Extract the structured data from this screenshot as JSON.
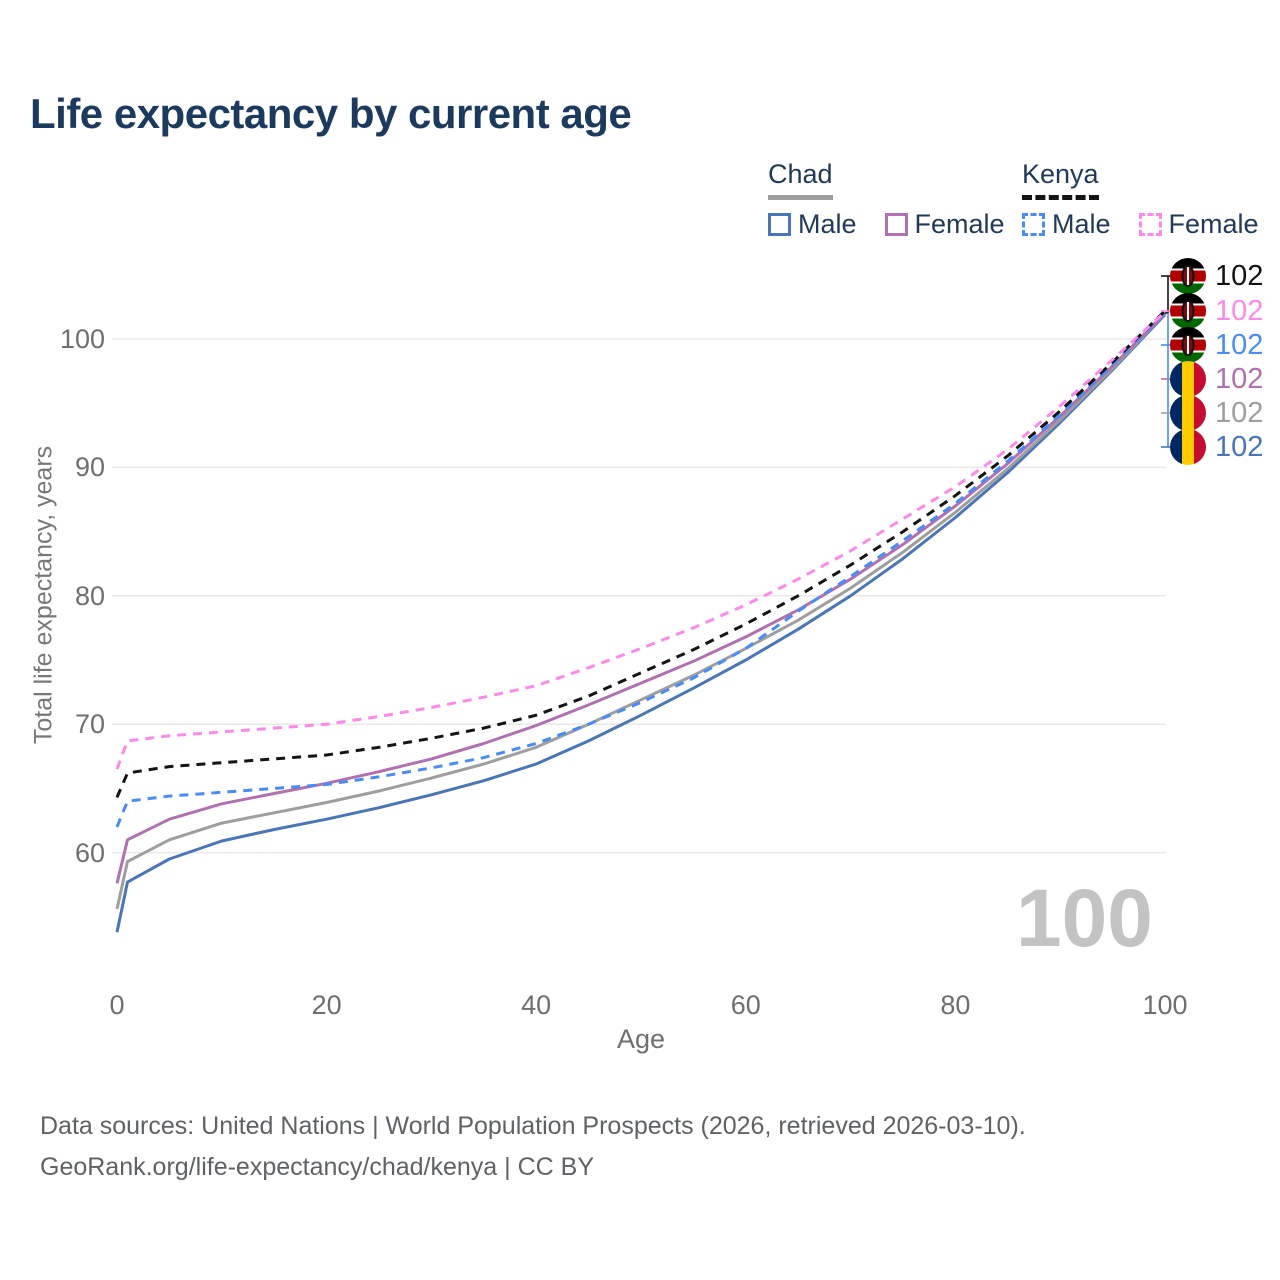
{
  "title": "Life expectancy by current age",
  "legend": {
    "groups": [
      {
        "label": "Chad",
        "line_style": "solid",
        "underline_color": "#9e9e9e",
        "items": [
          {
            "label": "Male",
            "color": "#4a76b8",
            "style": "solid"
          },
          {
            "label": "Female",
            "color": "#b170b0",
            "style": "solid"
          }
        ]
      },
      {
        "label": "Kenya",
        "line_style": "dashed",
        "underline_color": "#141414",
        "items": [
          {
            "label": "Male",
            "color": "#4a8cf7",
            "style": "dashed"
          },
          {
            "label": "Female",
            "color": "#fb8ae8",
            "style": "dashed"
          }
        ]
      }
    ]
  },
  "chart_data": {
    "type": "line",
    "title": "Life expectancy by current age",
    "xlabel": "Age",
    "ylabel": "Total life expectancy, years",
    "xlim": [
      0,
      100
    ],
    "ylim": [
      52,
      104
    ],
    "xticks": [
      0,
      20,
      40,
      60,
      80,
      100
    ],
    "yticks": [
      60,
      70,
      80,
      90,
      100
    ],
    "grid": "horizontal-only",
    "legend_position": "top-right",
    "x": [
      0,
      1,
      5,
      10,
      15,
      20,
      25,
      30,
      35,
      40,
      45,
      50,
      55,
      60,
      65,
      70,
      75,
      80,
      85,
      90,
      95,
      100
    ],
    "series": [
      {
        "name": "Chad Male",
        "country": "Chad",
        "group": "Male",
        "color": "#4a76b8",
        "dash": "none",
        "values": [
          53.8,
          57.7,
          59.5,
          60.9,
          61.8,
          62.6,
          63.5,
          64.5,
          65.6,
          66.9,
          68.7,
          70.7,
          72.8,
          75.0,
          77.4,
          80.0,
          82.9,
          86.1,
          89.6,
          93.5,
          97.6,
          101.9
        ]
      },
      {
        "name": "Chad Total",
        "country": "Chad",
        "group": "Total",
        "color": "#9e9e9e",
        "dash": "none",
        "values": [
          55.6,
          59.3,
          61.0,
          62.3,
          63.1,
          63.9,
          64.8,
          65.8,
          66.9,
          68.2,
          70.0,
          71.9,
          73.8,
          75.9,
          78.1,
          80.6,
          83.4,
          86.5,
          89.9,
          93.7,
          97.7,
          102.0
        ]
      },
      {
        "name": "Chad Female",
        "country": "Chad",
        "group": "Female",
        "color": "#b170b0",
        "dash": "none",
        "values": [
          57.6,
          61.0,
          62.6,
          63.8,
          64.6,
          65.4,
          66.3,
          67.3,
          68.5,
          69.9,
          71.5,
          73.2,
          74.9,
          76.8,
          78.9,
          81.3,
          84.0,
          87.0,
          90.3,
          94.0,
          97.9,
          102.0
        ]
      },
      {
        "name": "Kenya Male",
        "country": "Kenya",
        "group": "Male",
        "color": "#4a8cf7",
        "dash": "9 7",
        "values": [
          62.0,
          64.0,
          64.4,
          64.7,
          65.0,
          65.3,
          65.9,
          66.6,
          67.4,
          68.5,
          70.0,
          71.7,
          73.6,
          75.9,
          78.8,
          81.5,
          84.3,
          87.2,
          90.5,
          94.1,
          98.0,
          102.1
        ]
      },
      {
        "name": "Kenya Total",
        "country": "Kenya",
        "group": "Total",
        "color": "#141414",
        "dash": "9 7",
        "values": [
          64.3,
          66.2,
          66.7,
          67.0,
          67.3,
          67.6,
          68.2,
          68.9,
          69.7,
          70.7,
          72.2,
          74.0,
          75.8,
          77.8,
          80.0,
          82.4,
          85.0,
          87.8,
          90.9,
          94.4,
          98.2,
          102.2
        ]
      },
      {
        "name": "Kenya Female",
        "country": "Kenya",
        "group": "Female",
        "color": "#fb8ae8",
        "dash": "9 7",
        "values": [
          66.5,
          68.7,
          69.1,
          69.4,
          69.7,
          70.0,
          70.6,
          71.3,
          72.1,
          73.0,
          74.4,
          75.9,
          77.5,
          79.3,
          81.3,
          83.5,
          86.0,
          88.5,
          91.4,
          94.8,
          98.4,
          102.1
        ]
      }
    ]
  },
  "end_labels": [
    {
      "flag": "kenya",
      "series": "Kenya Total",
      "value": "102",
      "color": "#141414"
    },
    {
      "flag": "kenya",
      "series": "Kenya Female",
      "value": "102",
      "color": "#fb8ae8"
    },
    {
      "flag": "kenya",
      "series": "Kenya Male",
      "value": "102",
      "color": "#4a8cf7"
    },
    {
      "flag": "chad",
      "series": "Chad Female",
      "value": "102",
      "color": "#b170b0"
    },
    {
      "flag": "chad",
      "series": "Chad Total",
      "value": "102",
      "color": "#9e9e9e"
    },
    {
      "flag": "chad",
      "series": "Chad Male",
      "value": "102",
      "color": "#4a76b8"
    }
  ],
  "watermark": "100",
  "footer": {
    "line1": "Data sources: United Nations | World Population Prospects (2026, retrieved 2026-03-10).",
    "line2": "GeoRank.org/life-expectancy/chad/kenya | CC BY"
  },
  "colors": {
    "title": "#1b3a5e",
    "legend_text": "#223a57",
    "tick_text": "#6f6f6f",
    "grid": "#e8e8e8",
    "watermark": "#c3c3c3",
    "footer_text": "#5f6265"
  }
}
